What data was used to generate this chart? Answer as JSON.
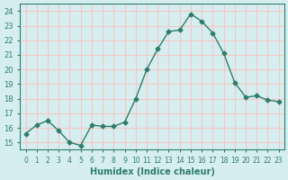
{
  "x": [
    0,
    1,
    2,
    3,
    4,
    5,
    6,
    7,
    8,
    9,
    10,
    11,
    12,
    13,
    14,
    15,
    16,
    17,
    18,
    19,
    20,
    21,
    22,
    23
  ],
  "y": [
    15.6,
    16.2,
    16.5,
    15.8,
    15.0,
    14.8,
    16.2,
    16.1,
    16.1,
    16.4,
    18.0,
    20.0,
    21.4,
    22.6,
    22.7,
    23.8,
    23.3,
    22.5,
    21.1,
    19.1,
    18.1,
    18.2,
    17.9,
    17.8
  ],
  "xlabel": "Humidex (Indice chaleur)",
  "ylabel": "",
  "ylim": [
    14.5,
    24.5
  ],
  "xlim": [
    -0.5,
    23.5
  ],
  "line_color": "#2e7d6b",
  "marker_color": "#2e7d6b",
  "bg_color": "#d6eef0",
  "grid_color": "#f5c8c8",
  "axis_color": "#2e7d6b",
  "tick_label_color": "#2e7d6b",
  "xlabel_color": "#2e7d6b",
  "yticks": [
    15,
    16,
    17,
    18,
    19,
    20,
    21,
    22,
    23,
    24
  ],
  "xticks": [
    0,
    1,
    2,
    3,
    4,
    5,
    6,
    7,
    8,
    9,
    10,
    11,
    12,
    13,
    14,
    15,
    16,
    17,
    18,
    19,
    20,
    21,
    22,
    23
  ]
}
